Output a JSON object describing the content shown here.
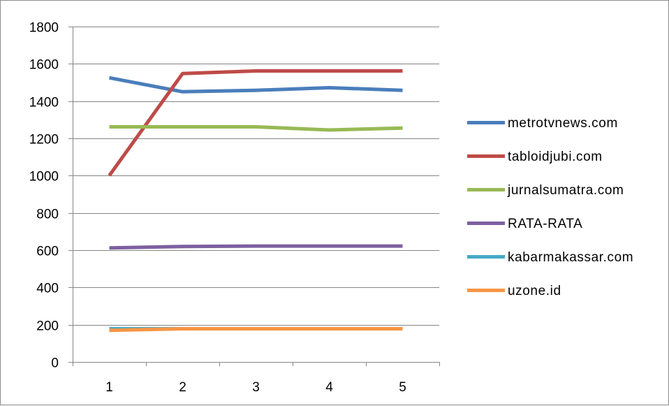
{
  "chart_data": {
    "type": "line",
    "x": [
      1,
      2,
      3,
      4,
      5
    ],
    "x_tick_labels": [
      "1",
      "2",
      "3",
      "4",
      "5"
    ],
    "ylim": [
      0,
      1800
    ],
    "y_ticks": [
      0,
      200,
      400,
      600,
      800,
      1000,
      1200,
      1400,
      1600,
      1800
    ],
    "y_tick_labels": [
      "0",
      "200",
      "400",
      "600",
      "800",
      "1000",
      "1200",
      "1400",
      "1600",
      "1800"
    ],
    "grid": "horizontal",
    "legend_position": "right",
    "series": [
      {
        "name": "metrotvnews.com",
        "color": "#4a7ebb",
        "values": [
          1525,
          1450,
          1458,
          1472,
          1458
        ]
      },
      {
        "name": "tabloidjubi.com",
        "color": "#be4b48",
        "values": [
          1000,
          1548,
          1562,
          1562,
          1562
        ]
      },
      {
        "name": "jurnalsumatra.com",
        "color": "#98b954",
        "values": [
          1262,
          1262,
          1262,
          1245,
          1255
        ]
      },
      {
        "name": "RATA-RATA",
        "color": "#7d60a0",
        "values": [
          612,
          620,
          622,
          622,
          622
        ]
      },
      {
        "name": "kabarmakassar.com",
        "color": "#46aac5",
        "values": [
          178,
          178,
          178,
          178,
          178
        ]
      },
      {
        "name": "uzone.id",
        "color": "#f79646",
        "values": [
          170,
          178,
          178,
          178,
          178
        ]
      }
    ]
  }
}
